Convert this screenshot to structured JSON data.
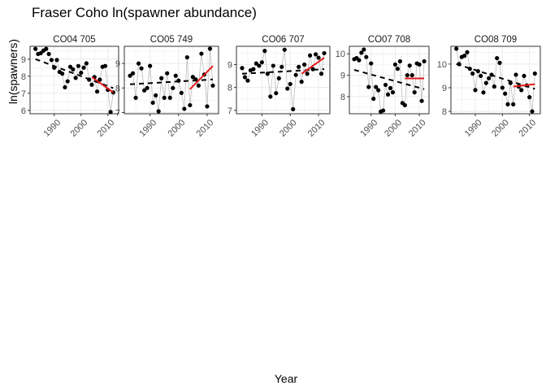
{
  "title": "Fraser Coho ln(spawner abundance)",
  "ylabel": "ln(spawners)",
  "xlabel": "Year",
  "colors": {
    "points": "#000000",
    "connector": "#bdbdbd",
    "overall_trend": "#000000",
    "recent_trend": "#e31a1c",
    "grid": "#ebebeb",
    "border": "#333333"
  },
  "chart_data": [
    {
      "type": "scatter",
      "panel": "CO04 705",
      "xlim": [
        1981,
        2014
      ],
      "ylim": [
        5.8,
        9.75
      ],
      "xticks": [
        1990,
        2000,
        2010
      ],
      "yticks": [
        6,
        7,
        8,
        9
      ],
      "x": [
        1983,
        1984,
        1985,
        1986,
        1987,
        1988,
        1989,
        1990,
        1991,
        1992,
        1993,
        1994,
        1995,
        1996,
        1997,
        1998,
        1999,
        2000,
        2001,
        2002,
        2003,
        2004,
        2005,
        2006,
        2007,
        2008,
        2009,
        2010,
        2011,
        2012
      ],
      "y": [
        9.6,
        9.3,
        9.35,
        9.5,
        9.6,
        9.3,
        8.95,
        8.5,
        8.95,
        8.25,
        8.15,
        7.35,
        7.7,
        8.55,
        8.4,
        7.9,
        8.6,
        8.2,
        8.5,
        8.75,
        7.8,
        7.5,
        7.95,
        7.1,
        7.8,
        8.55,
        8.6,
        7.2,
        5.9,
        7.05
      ],
      "overall_trend": {
        "x": [
          1983,
          2012
        ],
        "y": [
          9.0,
          7.3
        ]
      },
      "recent_trend": {
        "x": [
          2004,
          2012
        ],
        "y": [
          7.95,
          7.05
        ]
      }
    },
    {
      "type": "scatter",
      "panel": "CO05 749",
      "xlim": [
        1981,
        2014
      ],
      "ylim": [
        6.95,
        9.7
      ],
      "xticks": [
        1990,
        2000,
        2010
      ],
      "yticks": [
        7,
        8,
        9
      ],
      "x": [
        1983,
        1984,
        1985,
        1986,
        1987,
        1988,
        1989,
        1990,
        1991,
        1992,
        1993,
        1994,
        1995,
        1996,
        1997,
        1998,
        1999,
        2000,
        2001,
        2002,
        2003,
        2004,
        2005,
        2006,
        2007,
        2008,
        2009,
        2010,
        2011,
        2012
      ],
      "y": [
        8.5,
        8.6,
        7.6,
        9.0,
        8.8,
        7.9,
        8.0,
        8.9,
        7.4,
        7.7,
        7.05,
        8.4,
        7.6,
        8.6,
        7.6,
        8.0,
        8.5,
        8.3,
        7.8,
        7.15,
        9.25,
        7.3,
        8.45,
        8.35,
        8.1,
        9.4,
        8.55,
        7.25,
        9.6,
        8.1
      ],
      "overall_trend": {
        "x": [
          1983,
          2012
        ],
        "y": [
          8.15,
          8.35
        ]
      },
      "recent_trend": {
        "x": [
          2004,
          2012
        ],
        "y": [
          7.95,
          8.9
        ]
      }
    },
    {
      "type": "scatter",
      "panel": "CO06 707",
      "xlim": [
        1981,
        2014
      ],
      "ylim": [
        6.85,
        9.8
      ],
      "xticks": [
        1990,
        2000,
        2010
      ],
      "yticks": [
        7,
        8,
        9
      ],
      "x": [
        1983,
        1984,
        1985,
        1986,
        1987,
        1988,
        1989,
        1990,
        1991,
        1992,
        1993,
        1994,
        1995,
        1996,
        1997,
        1998,
        1999,
        2000,
        2001,
        2002,
        2003,
        2004,
        2005,
        2006,
        2007,
        2008,
        2009,
        2010,
        2011,
        2012
      ],
      "y": [
        8.85,
        8.45,
        8.3,
        8.75,
        8.8,
        9.05,
        8.95,
        9.1,
        9.6,
        8.6,
        7.6,
        8.95,
        7.75,
        8.4,
        8.9,
        9.65,
        7.95,
        8.15,
        7.05,
        8.55,
        8.9,
        8.25,
        9.0,
        8.6,
        9.4,
        8.8,
        9.45,
        9.3,
        8.6,
        9.5
      ],
      "overall_trend": {
        "x": [
          1983,
          2012
        ],
        "y": [
          8.6,
          8.8
        ]
      },
      "recent_trend": {
        "x": [
          2004,
          2012
        ],
        "y": [
          8.6,
          9.3
        ]
      }
    },
    {
      "type": "scatter",
      "panel": "CO07 708",
      "xlim": [
        1981,
        2014
      ],
      "ylim": [
        7.2,
        10.35
      ],
      "xticks": [
        1990,
        2000,
        2010
      ],
      "yticks": [
        8,
        9,
        10
      ],
      "x": [
        1983,
        1984,
        1985,
        1986,
        1987,
        1988,
        1989,
        1990,
        1991,
        1992,
        1993,
        1994,
        1995,
        1996,
        1997,
        1998,
        1999,
        2000,
        2001,
        2002,
        2003,
        2004,
        2005,
        2006,
        2007,
        2008,
        2009,
        2010,
        2011,
        2012
      ],
      "y": [
        9.75,
        9.8,
        9.7,
        10.05,
        10.2,
        9.85,
        8.45,
        9.55,
        7.9,
        8.45,
        8.3,
        7.3,
        7.35,
        8.55,
        8.1,
        8.4,
        8.2,
        9.5,
        9.3,
        9.65,
        7.7,
        7.6,
        9.0,
        9.45,
        9.0,
        8.2,
        9.55,
        9.5,
        7.8,
        9.65
      ],
      "overall_trend": {
        "x": [
          1983,
          2012
        ],
        "y": [
          9.25,
          8.35
        ]
      },
      "recent_trend": {
        "x": [
          2004,
          2012
        ],
        "y": [
          8.85,
          8.85
        ]
      }
    },
    {
      "type": "scatter",
      "panel": "CO08 709",
      "xlim": [
        1981,
        2014
      ],
      "ylim": [
        7.9,
        10.75
      ],
      "xticks": [
        1990,
        2000,
        2010
      ],
      "yticks": [
        8,
        9,
        10
      ],
      "x": [
        1983,
        1984,
        1985,
        1986,
        1987,
        1988,
        1989,
        1990,
        1991,
        1992,
        1993,
        1994,
        1995,
        1996,
        1997,
        1998,
        1999,
        2000,
        2001,
        2002,
        2003,
        2004,
        2005,
        2006,
        2007,
        2008,
        2009,
        2010,
        2011,
        2012
      ],
      "y": [
        10.65,
        10.0,
        10.3,
        10.35,
        10.5,
        9.8,
        9.6,
        8.9,
        9.7,
        9.5,
        8.8,
        9.2,
        9.4,
        9.55,
        9.05,
        10.25,
        10.05,
        9.0,
        8.75,
        8.3,
        9.2,
        8.3,
        9.55,
        9.05,
        8.9,
        9.5,
        9.1,
        8.6,
        8.0,
        9.6
      ],
      "overall_trend": {
        "x": [
          1983,
          2012
        ],
        "y": [
          10.0,
          8.95
        ]
      },
      "recent_trend": {
        "x": [
          2004,
          2012
        ],
        "y": [
          9.05,
          9.15
        ]
      }
    }
  ]
}
